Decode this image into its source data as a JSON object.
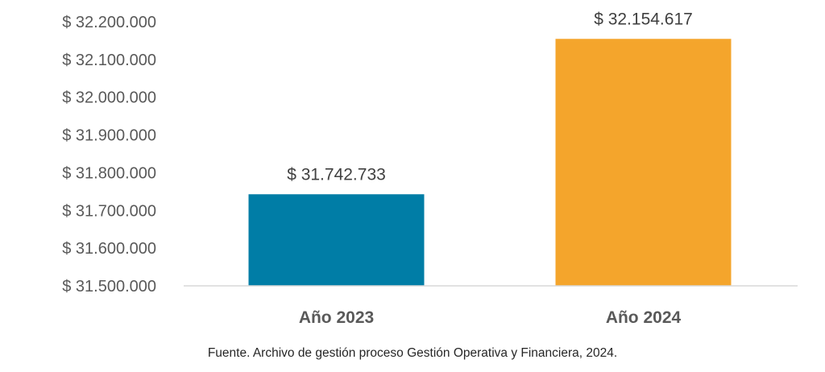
{
  "chart_data": {
    "type": "bar",
    "categories": [
      "Año 2023",
      "Año 2024"
    ],
    "values": [
      31742733,
      32154617
    ],
    "value_labels": [
      "$ 31.742.733",
      "$ 32.154.617"
    ],
    "bar_colors": [
      "#007da6",
      "#f4a52c"
    ],
    "ylim": [
      31500000,
      32200000
    ],
    "yticks": [
      31500000,
      31600000,
      31700000,
      31800000,
      31900000,
      32000000,
      32100000,
      32200000
    ],
    "ytick_labels": [
      "$ 31.500.000",
      "$ 31.600.000",
      "$ 31.700.000",
      "$ 31.800.000",
      "$ 31.900.000",
      "$ 32.000.000",
      "$ 32.100.000",
      "$ 32.200.000"
    ],
    "grid": false,
    "legend": "none",
    "title": "",
    "xlabel": "",
    "ylabel": ""
  },
  "source_note": "Fuente. Archivo de gestión proceso Gestión Operativa y Financiera, 2024."
}
